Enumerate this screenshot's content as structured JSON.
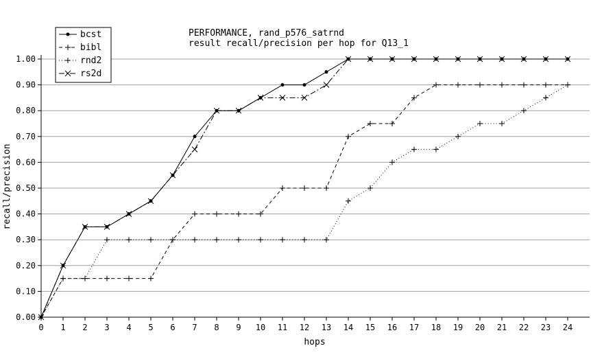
{
  "chart_data": {
    "type": "line",
    "title": "PERFORMANCE, rand_p576_satrnd",
    "subtitle": "result recall/precision per hop for Q13_1",
    "xlabel": "hops",
    "ylabel": "recall/precision",
    "xlim": [
      0,
      24
    ],
    "ylim": [
      0,
      1
    ],
    "x": [
      0,
      1,
      2,
      3,
      4,
      5,
      6,
      7,
      8,
      9,
      10,
      11,
      12,
      13,
      14,
      15,
      16,
      17,
      18,
      19,
      20,
      21,
      22,
      23,
      24
    ],
    "x_ticks": [
      "0",
      "1",
      "2",
      "3",
      "4",
      "5",
      "6",
      "7",
      "8",
      "9",
      "10",
      "11",
      "12",
      "13",
      "14",
      "15",
      "16",
      "17",
      "18",
      "19",
      "20",
      "21",
      "22",
      "23",
      "24"
    ],
    "y_ticks": [
      {
        "value": 0.0,
        "label": "0.00"
      },
      {
        "value": 0.1,
        "label": "0.10"
      },
      {
        "value": 0.2,
        "label": "0.20"
      },
      {
        "value": 0.3,
        "label": "0.30"
      },
      {
        "value": 0.4,
        "label": "0.40"
      },
      {
        "value": 0.5,
        "label": "0.50"
      },
      {
        "value": 0.6,
        "label": "0.60"
      },
      {
        "value": 0.7,
        "label": "0.70"
      },
      {
        "value": 0.8,
        "label": "0.80"
      },
      {
        "value": 0.9,
        "label": "0.90"
      },
      {
        "value": 1.0,
        "label": "1.00"
      }
    ],
    "grid": "horizontal",
    "legend_position": "top-left",
    "series": [
      {
        "name": "bcst",
        "line": "solid",
        "marker": "dot",
        "values": [
          0.0,
          0.2,
          0.35,
          0.35,
          0.4,
          0.45,
          0.55,
          0.7,
          0.8,
          0.8,
          0.85,
          0.9,
          0.9,
          0.95,
          1.0,
          1.0,
          1.0,
          1.0,
          1.0,
          1.0,
          1.0,
          1.0,
          1.0,
          1.0,
          1.0
        ]
      },
      {
        "name": "bibl",
        "line": "dashed",
        "marker": "plus",
        "values": [
          0.0,
          0.15,
          0.15,
          0.15,
          0.15,
          0.15,
          0.3,
          0.4,
          0.4,
          0.4,
          0.4,
          0.5,
          0.5,
          0.5,
          0.7,
          0.75,
          0.75,
          0.85,
          0.9,
          0.9,
          0.9,
          0.9,
          0.9,
          0.9,
          0.9
        ]
      },
      {
        "name": "rnd2",
        "line": "dotted",
        "marker": "plus",
        "values": [
          0.0,
          0.15,
          0.15,
          0.3,
          0.3,
          0.3,
          0.3,
          0.3,
          0.3,
          0.3,
          0.3,
          0.3,
          0.3,
          0.3,
          0.45,
          0.5,
          0.6,
          0.65,
          0.65,
          0.7,
          0.75,
          0.75,
          0.8,
          0.85,
          0.9
        ]
      },
      {
        "name": "rs2d",
        "line": "dashdot",
        "marker": "cross",
        "values": [
          0.0,
          0.2,
          0.35,
          0.35,
          0.4,
          0.45,
          0.55,
          0.65,
          0.8,
          0.8,
          0.85,
          0.85,
          0.85,
          0.9,
          1.0,
          1.0,
          1.0,
          1.0,
          1.0,
          1.0,
          1.0,
          1.0,
          1.0,
          1.0,
          1.0
        ]
      }
    ]
  }
}
